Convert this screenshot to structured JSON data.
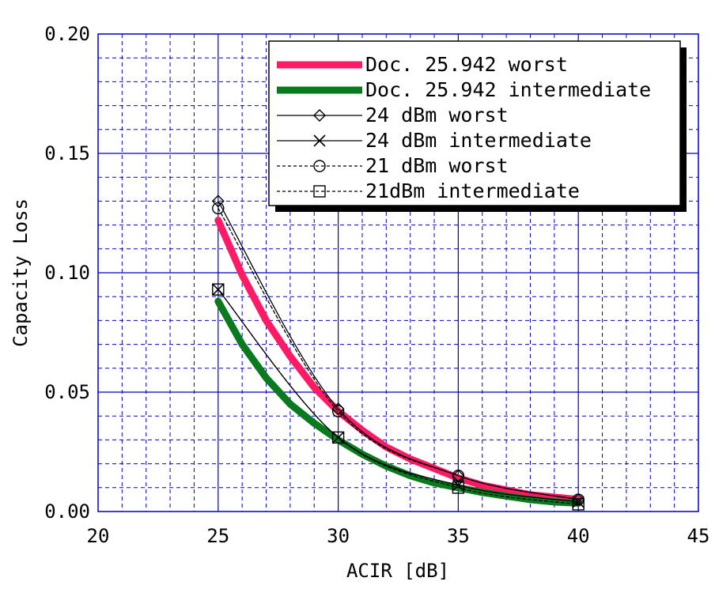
{
  "chart_data": {
    "type": "line",
    "title": "",
    "xlabel": "ACIR [dB]",
    "ylabel": "Capacity Loss",
    "xlim": [
      20,
      45
    ],
    "ylim": [
      0,
      0.2
    ],
    "x_ticks": [
      "20",
      "25",
      "30",
      "35",
      "40",
      "45"
    ],
    "y_ticks": [
      "0.00",
      "0.05",
      "0.10",
      "0.15",
      "0.20"
    ],
    "grid": true,
    "legend_position": "top-right",
    "series": [
      {
        "name": "Doc. 25.942 worst",
        "color": "#ff1a66",
        "style": "thick-solid",
        "marker": "none",
        "x": [
          25,
          26,
          27,
          28,
          29,
          30,
          31,
          32,
          33,
          34,
          35,
          36,
          37,
          38,
          39,
          40
        ],
        "y": [
          0.122,
          0.099,
          0.08,
          0.065,
          0.052,
          0.042,
          0.034,
          0.027,
          0.022,
          0.018,
          0.014,
          0.011,
          0.009,
          0.007,
          0.006,
          0.005
        ]
      },
      {
        "name": "Doc. 25.942 intermediate",
        "color": "#0a7a1e",
        "style": "thick-solid",
        "marker": "none",
        "x": [
          25,
          26,
          27,
          28,
          29,
          30,
          31,
          32,
          33,
          34,
          35,
          36,
          37,
          38,
          39,
          40
        ],
        "y": [
          0.088,
          0.07,
          0.056,
          0.045,
          0.037,
          0.03,
          0.024,
          0.019,
          0.015,
          0.012,
          0.01,
          0.008,
          0.0065,
          0.005,
          0.004,
          0.0035
        ]
      },
      {
        "name": "24 dBm worst",
        "color": "#000000",
        "style": "solid",
        "marker": "diamond",
        "x": [
          25,
          30,
          35,
          40
        ],
        "y": [
          0.13,
          0.043,
          0.015,
          0.005
        ]
      },
      {
        "name": "24 dBm intermediate",
        "color": "#000000",
        "style": "solid",
        "marker": "x",
        "x": [
          25,
          30,
          35,
          40
        ],
        "y": [
          0.093,
          0.031,
          0.011,
          0.004
        ]
      },
      {
        "name": "21 dBm worst",
        "color": "#000000",
        "style": "dashed",
        "marker": "circle",
        "x": [
          25,
          30,
          35,
          40
        ],
        "y": [
          0.127,
          0.042,
          0.015,
          0.005
        ]
      },
      {
        "name": "21dBm intermediate",
        "color": "#000000",
        "style": "dashed",
        "marker": "square",
        "x": [
          25,
          30,
          35,
          40
        ],
        "y": [
          0.093,
          0.031,
          0.01,
          0.003
        ]
      }
    ]
  }
}
